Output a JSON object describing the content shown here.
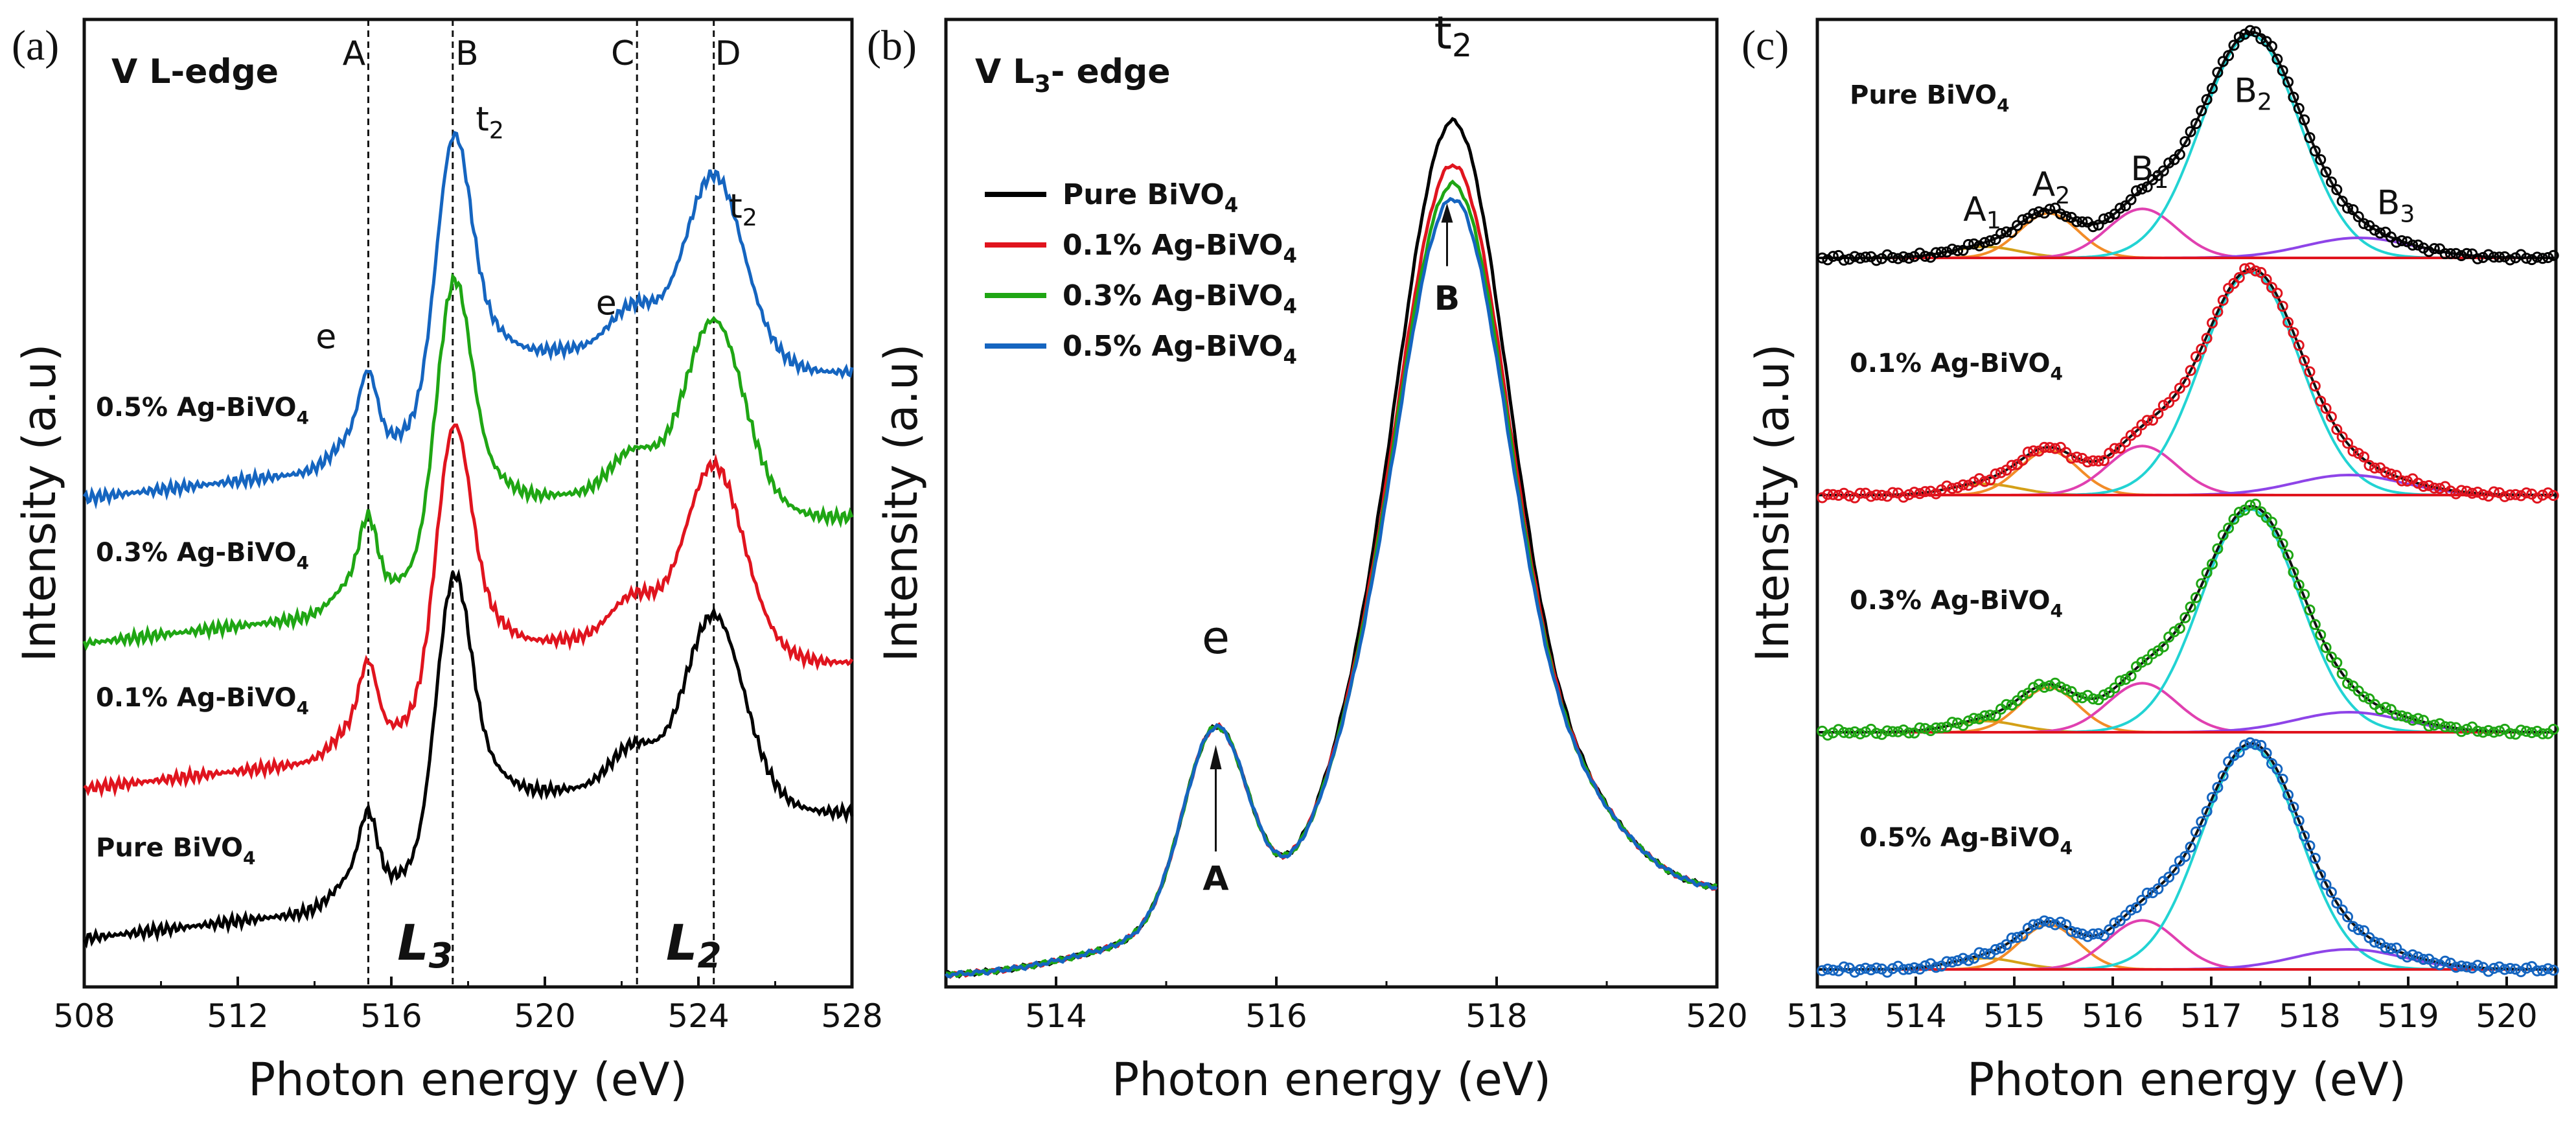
{
  "chart_data": [
    {
      "type": "line",
      "panel_label": "(a)",
      "title": "V L-edge",
      "xlabel": "Photon energy (eV)",
      "ylabel": "Intensity (a.u)",
      "xlim": [
        508,
        528
      ],
      "xticks": [
        "508",
        "512",
        "516",
        "520",
        "524",
        "528"
      ],
      "ylim": [
        0,
        1
      ],
      "vlines": [
        {
          "label": "A",
          "x": 515.4
        },
        {
          "label": "B",
          "x": 517.6
        },
        {
          "label": "C",
          "x": 522.4
        },
        {
          "label": "D",
          "x": 524.4
        }
      ],
      "edge_labels": [
        {
          "main": "L",
          "sub": "3",
          "x": 517.0
        },
        {
          "main": "L",
          "sub": "2",
          "x": 524.0
        }
      ],
      "peak_labels": [
        {
          "main": "t",
          "sub": "2",
          "x": 518.2,
          "y": 0.885
        },
        {
          "main": "t",
          "sub": "2",
          "x": 524.8,
          "y": 0.795
        },
        {
          "text": "e",
          "x": 514.3,
          "y": 0.66
        },
        {
          "text": "e",
          "x": 521.6,
          "y": 0.695
        }
      ],
      "series": [
        {
          "name": "Pure BiVO",
          "sub": "4",
          "color": "#000000",
          "offset": 0.05
        },
        {
          "name": "0.1% Ag-BiVO",
          "sub": "4",
          "color": "#e0141e",
          "offset": 0.205
        },
        {
          "name": "0.3% Ag-BiVO",
          "sub": "4",
          "color": "#1fa614",
          "offset": 0.355
        },
        {
          "name": "0.5% Ag-BiVO",
          "sub": "4",
          "color": "#1565c0",
          "offset": 0.505
        }
      ]
    },
    {
      "type": "line",
      "panel_label": "(b)",
      "title": "V L",
      "title_sub": "3",
      "title_suffix": "- edge",
      "xlabel": "Photon energy (eV)",
      "ylabel": "Intensity (a.u)",
      "xlim": [
        513,
        520
      ],
      "xticks": [
        "514",
        "516",
        "518",
        "520"
      ],
      "ylim": [
        0,
        1
      ],
      "annotations": [
        {
          "text": "e",
          "x": 515.45,
          "y": 0.345
        },
        {
          "text": "A",
          "x": 515.45,
          "y": 0.1
        },
        {
          "main": "t",
          "sub": "2",
          "x": 517.55,
          "y": 0.97
        },
        {
          "text": "B",
          "x": 517.55,
          "y": 0.7
        }
      ],
      "series": [
        {
          "name": "Pure BiVO",
          "sub": "4",
          "color": "#000000",
          "peak": 0.905
        },
        {
          "name": "0.1% Ag-BiVO",
          "sub": "4",
          "color": "#e0141e",
          "peak": 0.86
        },
        {
          "name": "0.3% Ag-BiVO",
          "sub": "4",
          "color": "#1fa614",
          "peak": 0.84
        },
        {
          "name": "0.5% Ag-BiVO",
          "sub": "4",
          "color": "#1565c0",
          "peak": 0.825
        }
      ]
    },
    {
      "type": "scatter",
      "panel_label": "(c)",
      "xlabel": "Photon energy (eV)",
      "ylabel": "Intensity (a.u)",
      "xlim": [
        513,
        520.5
      ],
      "xticks": [
        "513",
        "514",
        "515",
        "516",
        "517",
        "518",
        "519",
        "520"
      ],
      "ylim": [
        0,
        1
      ],
      "peak_labels": [
        {
          "main": "A",
          "sub": "1",
          "x": 514.6,
          "y": 0.78
        },
        {
          "main": "A",
          "sub": "2",
          "x": 515.3,
          "y": 0.82
        },
        {
          "main": "B",
          "sub": "1",
          "x": 516.3,
          "y": 0.845
        },
        {
          "main": "B",
          "sub": "2",
          "x": 517.35,
          "y": 0.97
        },
        {
          "main": "B",
          "sub": "3",
          "x": 518.8,
          "y": 0.79
        }
      ],
      "component_colors": {
        "A1": "#d4a017",
        "A2": "#f28c28",
        "B1": "#e040b0",
        "B2": "#22d3d3",
        "B3": "#8e44e8",
        "baseline": "#e0141e",
        "fit_line": "#111111"
      },
      "series": [
        {
          "name": "Pure BiVO",
          "sub": "4",
          "color": "#000000"
        },
        {
          "name": "0.1% Ag-BiVO",
          "sub": "4",
          "color": "#e0141e"
        },
        {
          "name": "0.3% Ag-BiVO",
          "sub": "4",
          "color": "#1fa614"
        },
        {
          "name": "0.5% Ag-BiVO",
          "sub": "4",
          "color": "#1565c0"
        }
      ]
    }
  ]
}
